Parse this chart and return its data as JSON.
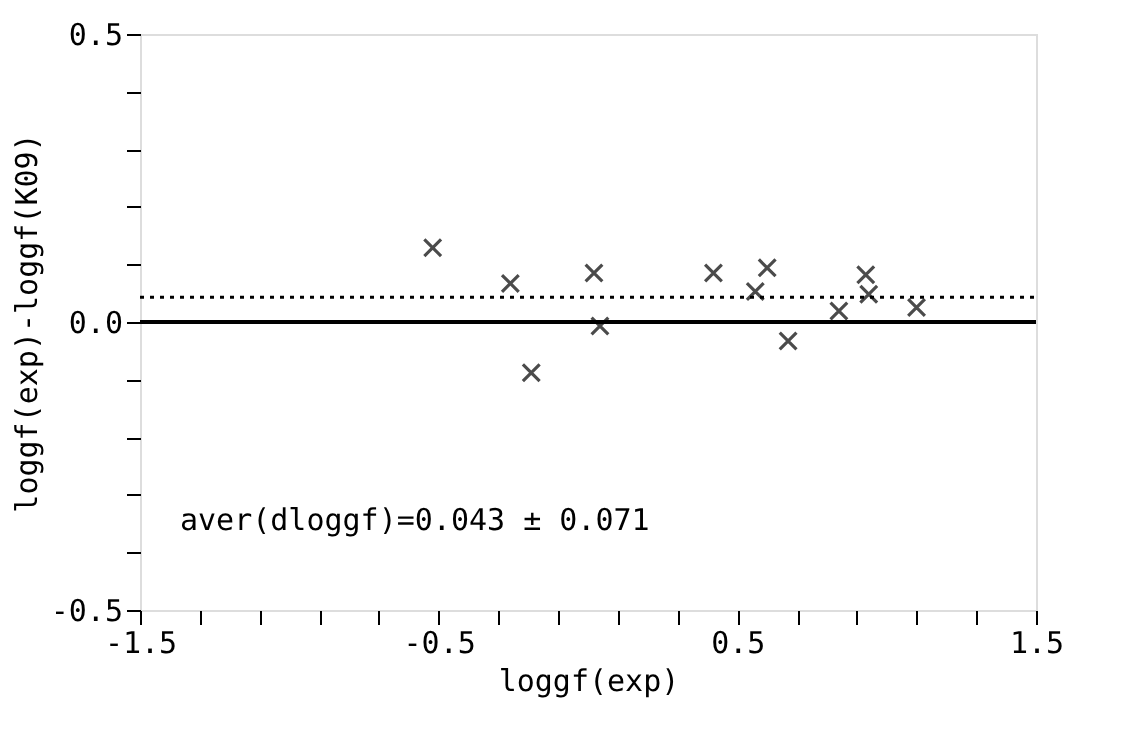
{
  "chart_data": {
    "type": "scatter",
    "xlabel": "loggf(exp)",
    "ylabel": "loggf(exp)-loggf(K09)",
    "x": [
      -0.52,
      -0.26,
      -0.19,
      0.02,
      0.04,
      0.42,
      0.56,
      0.6,
      0.67,
      0.84,
      0.93,
      0.94,
      1.1
    ],
    "series": [
      {
        "color": "#000000",
        "values": [
          0.129,
          0.067,
          -0.088,
          0.085,
          -0.007,
          0.085,
          0.053,
          0.094,
          -0.033,
          0.019,
          0.082,
          0.048,
          0.025
        ]
      }
    ],
    "marker": "cross",
    "xlim": [
      -1.5,
      1.5
    ],
    "ylim": [
      -0.5,
      0.5
    ],
    "xticks": [
      -1.5,
      {
        "value": -1.3,
        "label": null
      },
      {
        "value": -1.1,
        "label": null
      },
      {
        "value": -0.9,
        "label": null
      },
      {
        "value": -0.7,
        "label": null
      },
      -0.5,
      {
        "value": -0.3,
        "label": null
      },
      {
        "value": -0.1,
        "label": null
      },
      {
        "value": 0.1,
        "label": null
      },
      {
        "value": 0.3,
        "label": null
      },
      0.5,
      {
        "value": 0.7,
        "label": null
      },
      {
        "value": 0.9,
        "label": null
      },
      {
        "value": 1.1,
        "label": null
      },
      {
        "value": 1.3,
        "label": null
      },
      1.5
    ],
    "yticks": [
      -0.5,
      {
        "value": -0.4,
        "label": null
      },
      {
        "value": -0.3,
        "label": null
      },
      {
        "value": -0.2,
        "label": null
      },
      {
        "value": -0.1,
        "label": null
      },
      {
        "value": 0,
        "label": "0.0"
      },
      {
        "value": 0.1,
        "label": null
      },
      {
        "value": 0.2,
        "label": null
      },
      {
        "value": 0.3,
        "label": null
      },
      {
        "value": 0.4,
        "label": null
      },
      0.5
    ],
    "ref_lines": [
      {
        "axis": "y",
        "value": 0,
        "line_style": "solid",
        "color": "#000000"
      },
      {
        "axis": "y",
        "value": 0.043,
        "line_style": "dotted",
        "color": "#000000"
      }
    ],
    "annotations": [
      "aver(dloggf)=0.043 ± 0.071"
    ],
    "grid": false
  }
}
